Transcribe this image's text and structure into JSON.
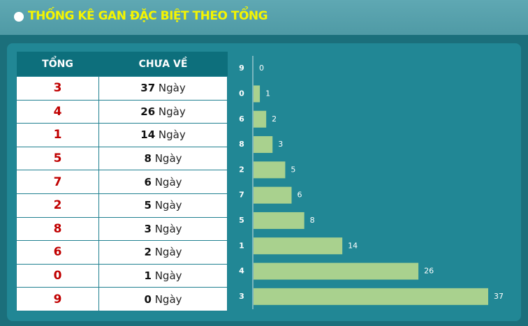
{
  "header": {
    "title": "THỐNG KÊ GAN ĐẶC BIỆT THEO TỔNG"
  },
  "table": {
    "columns": [
      "TỔNG",
      "CHƯA VỀ"
    ],
    "rows": [
      [
        "3",
        "37",
        "Ngày"
      ],
      [
        "4",
        "26",
        "Ngày"
      ],
      [
        "1",
        "14",
        "Ngày"
      ],
      [
        "5",
        "8",
        "Ngày"
      ],
      [
        "7",
        "6",
        "Ngày"
      ],
      [
        "2",
        "5",
        "Ngày"
      ],
      [
        "8",
        "3",
        "Ngày"
      ],
      [
        "6",
        "2",
        "Ngày"
      ],
      [
        "0",
        "1",
        "Ngày"
      ],
      [
        "9",
        "0",
        "Ngày"
      ]
    ]
  },
  "chart_data": {
    "type": "hbar",
    "categories": [
      "9",
      "0",
      "6",
      "8",
      "2",
      "7",
      "5",
      "1",
      "4",
      "3"
    ],
    "values": [
      0,
      1,
      2,
      3,
      5,
      6,
      8,
      14,
      26,
      37
    ],
    "color": "#a9d18e"
  }
}
